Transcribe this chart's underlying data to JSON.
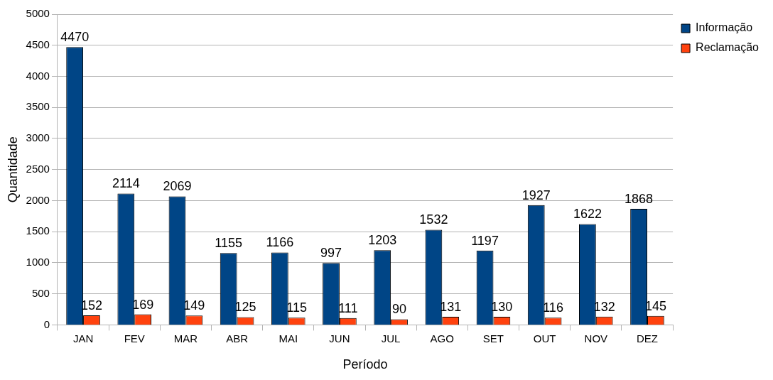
{
  "chart_data": {
    "type": "bar",
    "xlabel": "Período",
    "ylabel": "Quantidade",
    "categories": [
      "JAN",
      "FEV",
      "MAR",
      "ABR",
      "MAI",
      "JUN",
      "JUL",
      "AGO",
      "SET",
      "OUT",
      "NOV",
      "DEZ"
    ],
    "series": [
      {
        "name": "Informação",
        "color": "#004586",
        "values": [
          4470,
          2114,
          2069,
          1155,
          1166,
          997,
          1203,
          1532,
          1197,
          1927,
          1622,
          1868
        ]
      },
      {
        "name": "Reclamação",
        "color": "#ff420e",
        "values": [
          152,
          169,
          149,
          125,
          115,
          111,
          90,
          131,
          130,
          116,
          132,
          145
        ]
      }
    ],
    "ylim": [
      0,
      5000
    ],
    "yticks": [
      0,
      500,
      1000,
      1500,
      2000,
      2500,
      3000,
      3500,
      4000,
      4500,
      5000
    ],
    "grid": "y",
    "legend": "top right",
    "data_labels": true
  }
}
